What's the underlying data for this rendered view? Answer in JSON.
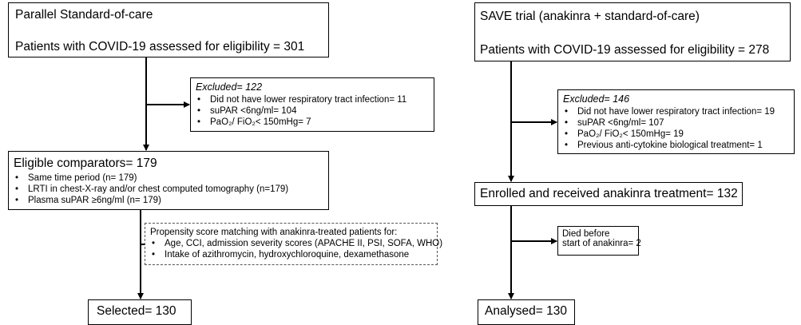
{
  "left": {
    "header": {
      "title": "Parallel Standard-of-care",
      "assessed": "Patients with COVID-19 assessed for eligibility = 301"
    },
    "excluded": {
      "title": "Excluded= 122",
      "items": [
        "Did not have lower respiratory tract infection= 11",
        "suPAR <6ng/ml= 104",
        "PaO₂/ FiO₂< 150mHg= 7"
      ]
    },
    "eligible": {
      "title": "Eligible comparators= 179",
      "items": [
        "Same time period (n= 179)",
        "LRTI in chest-X-ray and/or chest computed tomography (n=179)",
        "Plasma suPAR ≥6ng/ml (n= 179)"
      ]
    },
    "matching": {
      "title": "Propensity score matching with anakinra-treated patients for:",
      "items": [
        "Age, CCI, admission severity scores (APACHE II, PSI, SOFA, WHO)",
        "Intake of azithromycin, hydroxychloroquine, dexamethasone"
      ]
    },
    "selected": "Selected= 130"
  },
  "right": {
    "header": {
      "title": "SAVE trial (anakinra + standard-of-care)",
      "assessed": "Patients with COVID-19 assessed for eligibility = 278"
    },
    "excluded": {
      "title": "Excluded= 146",
      "items": [
        "Did not have lower respiratory tract infection= 19",
        "suPAR <6ng/ml= 107",
        "PaO₂/ FiO₂< 150mHg= 19",
        "Previous anti-cytokine biological treatment= 1"
      ]
    },
    "enrolled": "Enrolled and received anakinra treatment= 132",
    "died": {
      "line1": "Died before",
      "line2": "start of anakinra= 2"
    },
    "analysed": "Analysed= 130"
  }
}
